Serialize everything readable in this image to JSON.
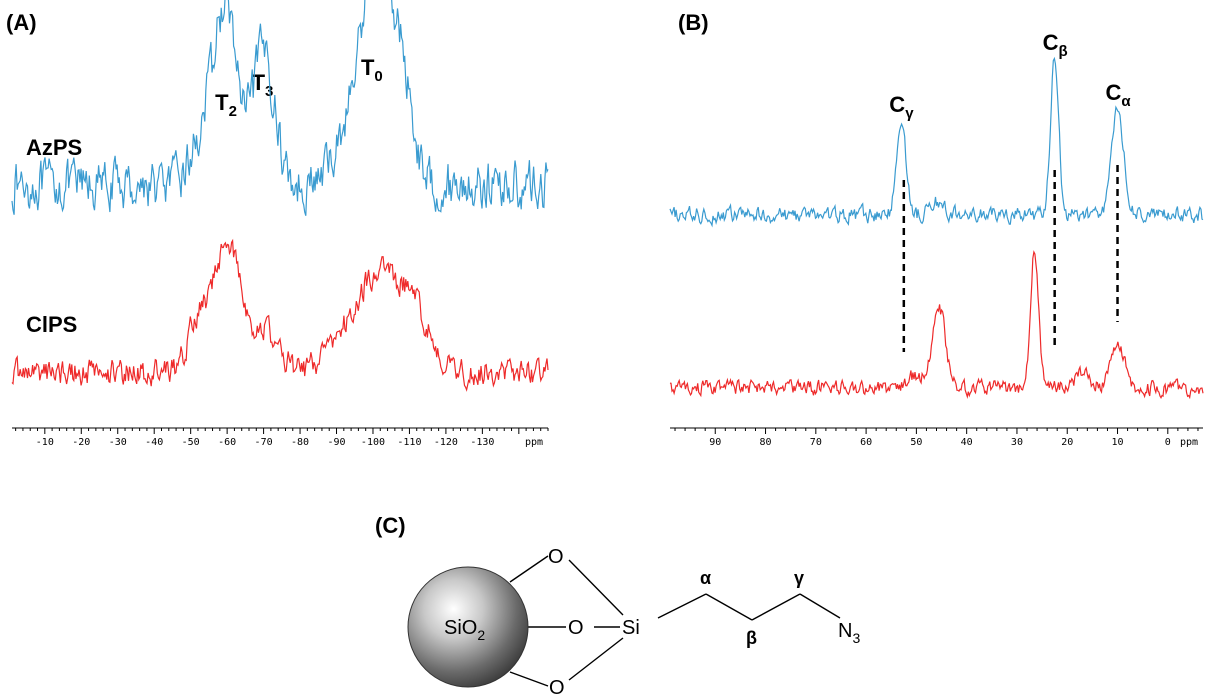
{
  "panel_labels": {
    "a": "(A)",
    "b": "(B)",
    "c": "(C)"
  },
  "colors": {
    "azps": "#3a9bd0",
    "clps": "#ee2a2a",
    "greek_labels": "#1a1ad6"
  },
  "chart_data": [
    {
      "type": "line",
      "title": "",
      "xlabel": "ppm",
      "xlim": [
        -1,
        -148
      ],
      "x_reversed": true,
      "ticks": [
        -10,
        -20,
        -30,
        -40,
        -50,
        -60,
        -70,
        -80,
        -90,
        -100,
        -110,
        -120,
        -130
      ],
      "tick_labels": [
        "-10",
        "-20",
        "-30",
        "-40",
        "-50",
        "-60",
        "-70",
        "-80",
        "-90",
        "-100",
        "-110",
        "-120",
        "-130"
      ],
      "unit_label": "ppm",
      "series": [
        {
          "name": "AzPS",
          "color": "#3a9bd0",
          "baseline_level": 0.08,
          "noise": 0.09,
          "peaks": [
            {
              "x": -60,
              "height": 0.62,
              "width": 3
            },
            {
              "x": -70,
              "height": 0.55,
              "width": 3
            },
            {
              "x": -55,
              "height": 0.25,
              "width": 4
            },
            {
              "x": -100,
              "height": 0.6,
              "width": 4
            },
            {
              "x": -102,
              "height": 0.45,
              "width": 3
            },
            {
              "x": -108,
              "height": 0.42,
              "width": 3
            },
            {
              "x": -93,
              "height": 0.18,
              "width": 4
            }
          ]
        },
        {
          "name": "ClPS",
          "color": "#ee2a2a",
          "baseline_level": 0.0,
          "noise": 0.09,
          "peaks": [
            {
              "x": -60,
              "height": 0.92,
              "width": 3.5
            },
            {
              "x": -52,
              "height": 0.35,
              "width": 3
            },
            {
              "x": -70,
              "height": 0.3,
              "width": 4
            },
            {
              "x": -100,
              "height": 0.62,
              "width": 5
            },
            {
              "x": -110,
              "height": 0.5,
              "width": 5
            },
            {
              "x": -90,
              "height": 0.18,
              "width": 4
            }
          ]
        }
      ],
      "annotations": [
        {
          "label": "T",
          "sub": "2",
          "x": -60
        },
        {
          "label": "T",
          "sub": "3",
          "x": -70
        },
        {
          "label": "T",
          "sub": "0",
          "x": -100
        }
      ],
      "series_labels": [
        "AzPS",
        "ClPS"
      ]
    },
    {
      "type": "line",
      "title": "",
      "xlabel": "ppm",
      "xlim": [
        99,
        -7
      ],
      "x_reversed": true,
      "ticks": [
        90,
        80,
        70,
        60,
        50,
        40,
        30,
        20,
        10,
        0
      ],
      "tick_labels": [
        "90",
        "80",
        "70",
        "60",
        "50",
        "40",
        "30",
        "20",
        "10",
        "0"
      ],
      "unit_label": "ppm",
      "series": [
        {
          "name": "AzPS",
          "color": "#3a9bd0",
          "baseline_level": 0.0,
          "noise": 0.06,
          "peaks": [
            {
              "x": 53,
              "height": 0.78,
              "width": 0.9
            },
            {
              "x": 22.5,
              "height": 1.25,
              "width": 0.8
            },
            {
              "x": 10,
              "height": 0.85,
              "width": 1.2
            },
            {
              "x": 46,
              "height": 0.1,
              "width": 1.5
            }
          ]
        },
        {
          "name": "ClPS",
          "color": "#ee2a2a",
          "baseline_level": 0.0,
          "noise": 0.06,
          "peaks": [
            {
              "x": 45.5,
              "height": 0.68,
              "width": 1.3
            },
            {
              "x": 26.5,
              "height": 1.18,
              "width": 0.8
            },
            {
              "x": 10,
              "height": 0.4,
              "width": 1.4
            },
            {
              "x": 50,
              "height": 0.1,
              "width": 2
            },
            {
              "x": 17,
              "height": 0.12,
              "width": 1.5
            }
          ]
        }
      ],
      "annotations": [
        {
          "label": "C",
          "sub": "γ",
          "x": 53
        },
        {
          "label": "C",
          "sub": "β",
          "x": 22.5
        },
        {
          "label": "C",
          "sub": "α",
          "x": 10
        }
      ],
      "dashed_connectors": [
        {
          "x_top": 52.5,
          "x_bottom": 52.5
        },
        {
          "x_top": 22.5,
          "x_bottom": 22.5
        },
        {
          "x_top": 10,
          "x_bottom": 10
        }
      ]
    }
  ],
  "structure": {
    "core_label": "SiO",
    "core_sub": "2",
    "oxygen": "O",
    "silicon": "Si",
    "terminal": "N",
    "terminal_sub": "3",
    "alpha": "α",
    "beta": "β",
    "gamma": "γ"
  }
}
